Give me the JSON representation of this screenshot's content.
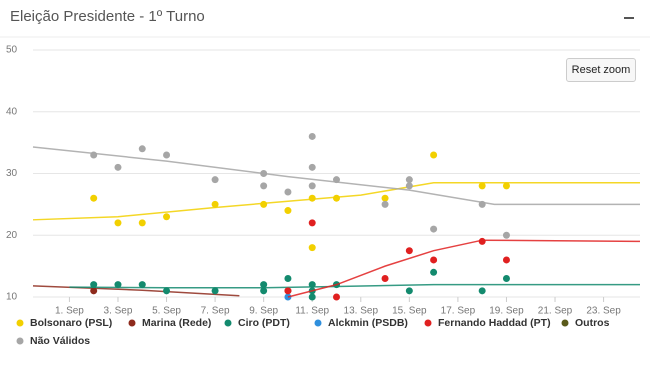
{
  "header": {
    "title": "Eleição Presidente - 1º Turno"
  },
  "reset_zoom": "Reset zoom",
  "chart_data": {
    "type": "scatter",
    "xlim": [
      -0.5,
      24.5
    ],
    "xticks": [
      {
        "value": 1,
        "label": "1. Sep"
      },
      {
        "value": 3,
        "label": "3. Sep"
      },
      {
        "value": 5,
        "label": "5. Sep"
      },
      {
        "value": 7,
        "label": "7. Sep"
      },
      {
        "value": 9,
        "label": "9. Sep"
      },
      {
        "value": 11,
        "label": "11. Sep"
      },
      {
        "value": 13,
        "label": "13. Sep"
      },
      {
        "value": 15,
        "label": "15. Sep"
      },
      {
        "value": 17,
        "label": "17. Sep"
      },
      {
        "value": 19,
        "label": "19. Sep"
      },
      {
        "value": 21,
        "label": "21. Sep"
      },
      {
        "value": 23,
        "label": "23. Sep"
      }
    ],
    "ylim": [
      10,
      50
    ],
    "yticks": [
      10,
      20,
      30,
      40,
      50
    ],
    "grid": true,
    "series": [
      {
        "name": "Bolsonaro (PSL)",
        "color": "#f2d000",
        "x": [
          2,
          3,
          4,
          5,
          7,
          9,
          10,
          11,
          11,
          12,
          14,
          16,
          18,
          19
        ],
        "values": [
          26,
          22,
          22,
          23,
          25,
          25,
          24,
          18,
          26,
          26,
          26,
          33,
          28,
          28
        ],
        "trend": {
          "x": [
            -0.5,
            3,
            7,
            10,
            13,
            16,
            24.5
          ],
          "values": [
            22.5,
            23,
            24.5,
            25.5,
            26.5,
            28.5,
            28.5
          ]
        }
      },
      {
        "name": "Marina (Rede)",
        "color": "#8e2a1c",
        "x": [
          2,
          10
        ],
        "values": [
          11,
          11
        ],
        "trend": {
          "x": [
            -0.5,
            4,
            8
          ],
          "values": [
            11.8,
            11.1,
            10.2
          ]
        }
      },
      {
        "name": "Ciro (PDT)",
        "color": "#138a6e",
        "x": [
          2,
          3,
          4,
          5,
          7,
          9,
          9,
          10,
          11,
          11,
          11,
          12,
          15,
          16,
          18,
          19
        ],
        "values": [
          12,
          12,
          12,
          11,
          11,
          12,
          11,
          13,
          12,
          11,
          10,
          12,
          11,
          14,
          11,
          13
        ],
        "trend": {
          "x": [
            1,
            5,
            9,
            12,
            16,
            24.5
          ],
          "values": [
            11.6,
            11.5,
            11.5,
            11.7,
            12,
            12
          ]
        }
      },
      {
        "name": "Alckmin (PSDB)",
        "color": "#2f8fdd",
        "x": [
          10
        ],
        "values": [
          10
        ],
        "trend": {
          "x": [],
          "values": []
        }
      },
      {
        "name": "Fernando Haddad (PT)",
        "color": "#e02020",
        "x": [
          10,
          11,
          12,
          14,
          15,
          16,
          18,
          19
        ],
        "values": [
          11,
          22,
          10,
          13,
          17.5,
          16,
          19,
          16
        ],
        "trend": {
          "x": [
            10,
            12,
            14,
            16,
            18,
            24.5
          ],
          "values": [
            10,
            12,
            15,
            17.5,
            19.2,
            19
          ]
        }
      },
      {
        "name": "Outros",
        "color": "#5a5a1a",
        "x": [],
        "values": [],
        "trend": {
          "x": [],
          "values": []
        }
      },
      {
        "name": "Não Válidos",
        "color": "#a6a6a6",
        "x": [
          2,
          3,
          4,
          5,
          7,
          9,
          9,
          10,
          11,
          11,
          11,
          12,
          14,
          15,
          15,
          16,
          18,
          19
        ],
        "values": [
          33,
          31,
          34,
          33,
          29,
          30,
          28,
          27,
          36,
          31,
          28,
          29,
          25,
          29,
          28,
          21,
          25,
          20
        ],
        "trend": {
          "x": [
            -0.5,
            5,
            10,
            15,
            18.5,
            24.5
          ],
          "values": [
            34.3,
            32,
            29.5,
            27.3,
            25,
            25
          ]
        }
      }
    ]
  }
}
